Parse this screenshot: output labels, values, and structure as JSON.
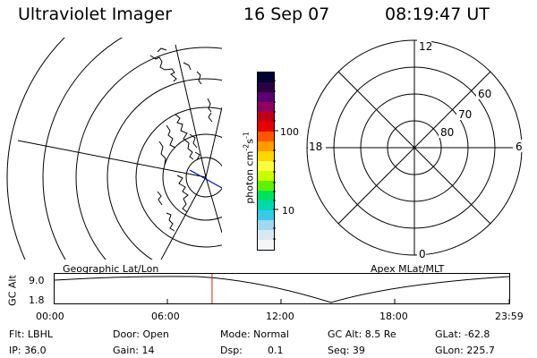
{
  "header": {
    "title": "Ultraviolet Imager",
    "date": "16 Sep 07",
    "time": "08:19:47 UT"
  },
  "colorbar": {
    "unit_label": "photon cm",
    "unit_exp1": "-2",
    "unit_s": "s",
    "unit_exp2": "-1",
    "tick_100": "100",
    "tick_10": "10",
    "colors": [
      "#000033",
      "#2a0040",
      "#5a0070",
      "#900060",
      "#c00018",
      "#e80000",
      "#ff5500",
      "#ff9a00",
      "#ffd800",
      "#ffff40",
      "#c8ff00",
      "#60f000",
      "#00e060",
      "#00d8b0",
      "#38c8e8",
      "#a0d8ee",
      "#d8e8f0",
      "#f4f6f8"
    ]
  },
  "polar": {
    "mlt_12": "12",
    "mlt_18": "18",
    "mlt_6": "6",
    "mlt_0": "0",
    "lat_60": "60",
    "lat_70": "70",
    "lat_80": "80"
  },
  "panels": {
    "geo_label": "Geographic Lat/Lon",
    "apex_label": "Apex MLat/MLT"
  },
  "altitude": {
    "axis_label": "GC Alt",
    "tick_high": "9.0",
    "tick_low": "1.8",
    "time_ticks": [
      "00:00",
      "06:00",
      "12:00",
      "18:00",
      "23:59"
    ],
    "current_time_fraction": 0.347
  },
  "info": {
    "flt": "Flt: LBHL",
    "door": "Door: Open",
    "mode": "Mode: Normal",
    "gc_alt": "GC Alt: 8.5 Re",
    "glat": "GLat: -62.8",
    "ip": "IP: 36.0",
    "gain": "Gain: 14",
    "dsp_label": "Dsp:",
    "dsp_value": "0.1",
    "seq": "Seq: 39",
    "glon": "GLon: 225.7"
  }
}
